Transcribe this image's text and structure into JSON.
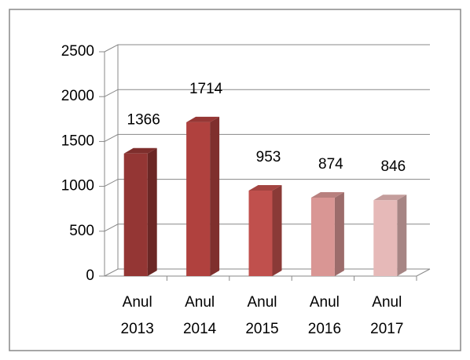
{
  "chart_data": {
    "type": "bar3d",
    "categories": [
      "Anul 2013",
      "Anul 2014",
      "Anul 2015",
      "Anul 2016",
      "Anul 2017"
    ],
    "values": [
      1366,
      1714,
      953,
      874,
      846
    ],
    "colors": [
      "#943634",
      "#b0413e",
      "#c0504d",
      "#d99694",
      "#e6b9b8"
    ],
    "ylim": [
      0,
      2500
    ],
    "yticks": [
      0,
      500,
      1000,
      1500,
      2000,
      2500
    ],
    "grid": true
  }
}
